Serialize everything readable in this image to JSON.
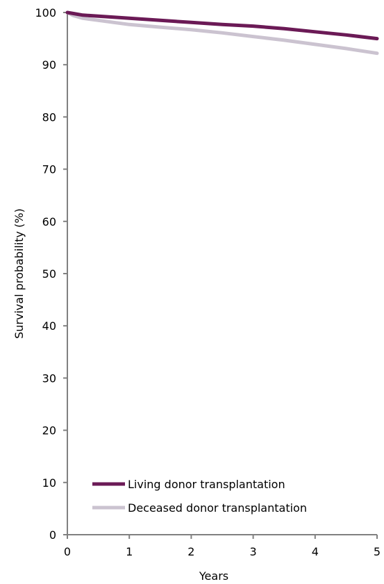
{
  "chart_data": {
    "type": "line",
    "title": "",
    "xlabel": "Years",
    "ylabel": "Survival probability (%)",
    "xlim": [
      0,
      5
    ],
    "ylim": [
      0,
      100
    ],
    "x_ticks": [
      0,
      1,
      2,
      3,
      4,
      5
    ],
    "y_ticks": [
      0,
      10,
      20,
      30,
      40,
      50,
      60,
      70,
      80,
      90,
      100
    ],
    "grid": false,
    "legend_position": "bottom-left",
    "series": [
      {
        "name": "Living donor transplantation",
        "color": "#6b1a56",
        "x": [
          0,
          0.1,
          0.25,
          0.5,
          0.75,
          1,
          1.5,
          2,
          2.5,
          3,
          3.5,
          4,
          4.5,
          5
        ],
        "y": [
          100,
          99.8,
          99.5,
          99.3,
          99.1,
          98.9,
          98.5,
          98.1,
          97.7,
          97.4,
          96.9,
          96.3,
          95.7,
          95.0
        ]
      },
      {
        "name": "Deceased donor transplantation",
        "color": "#cbc3d0",
        "x": [
          0,
          0.1,
          0.25,
          0.5,
          0.75,
          1,
          1.5,
          2,
          2.5,
          3,
          3.5,
          4,
          4.5,
          5
        ],
        "y": [
          100,
          99.4,
          98.9,
          98.5,
          98.1,
          97.7,
          97.2,
          96.7,
          96.1,
          95.4,
          94.7,
          93.9,
          93.1,
          92.2
        ]
      }
    ]
  }
}
